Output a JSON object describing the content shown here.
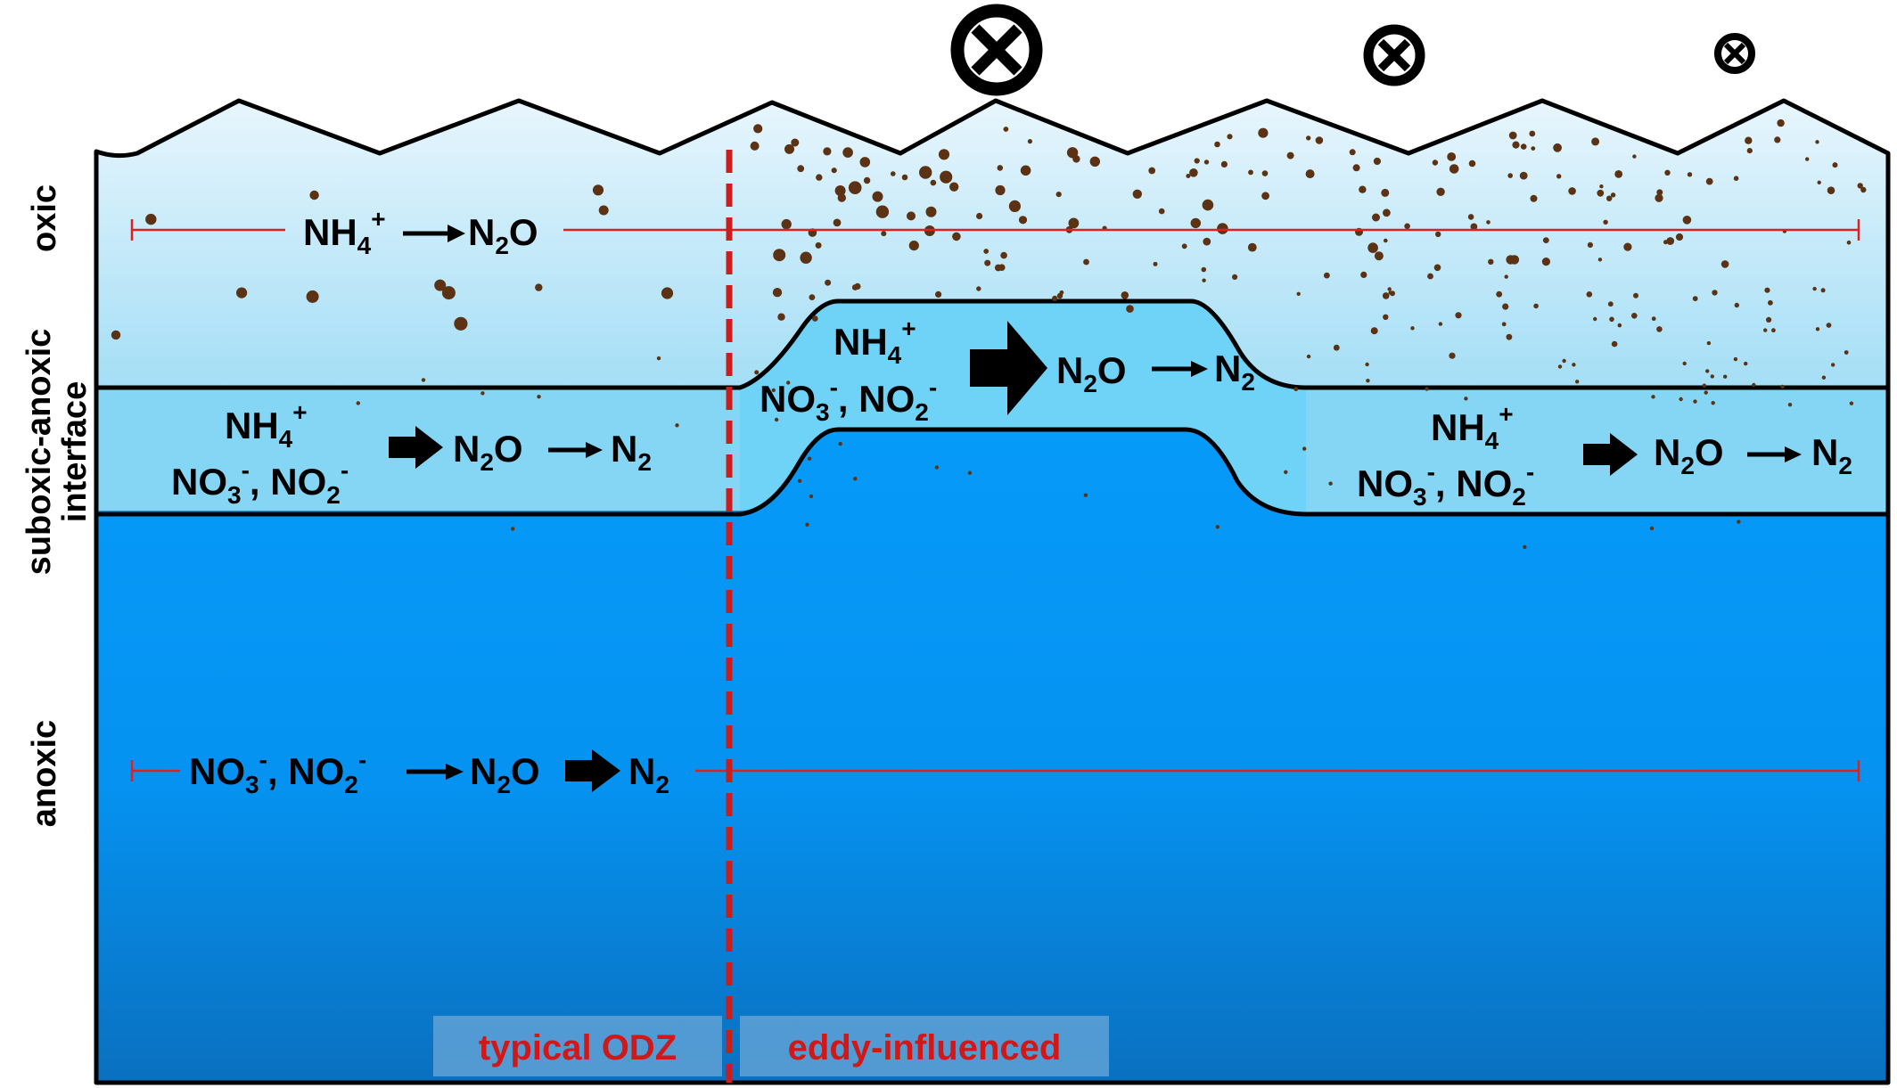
{
  "zone_labels": {
    "oxic": "oxic",
    "interface_line1": "suboxic-anoxic",
    "interface_line2": "interface",
    "anoxic": "anoxic"
  },
  "oxic_pathway": {
    "reactant": "NH",
    "reactant_sub": "4",
    "reactant_sup": "+",
    "product": "N",
    "product_sub": "2",
    "product_tail": "O"
  },
  "left_interface_pathway": {
    "line1": "NH",
    "line1_sub": "4",
    "line1_sup": "+",
    "line2_a": "NO",
    "line2_a_sub": "3",
    "line2_a_sup": "-",
    "line2_sep": ", NO",
    "line2_b_sub": "2",
    "line2_b_sup": "-",
    "intermediate": "N",
    "intermediate_sub": "2",
    "intermediate_tail": "O",
    "product": "N",
    "product_sub": "2"
  },
  "eddy_pathway": {
    "line1": "NH",
    "line1_sub": "4",
    "line1_sup": "+",
    "line2_a": "NO",
    "line2_a_sub": "3",
    "line2_a_sup": "-",
    "line2_sep": ", NO",
    "line2_b_sub": "2",
    "line2_b_sup": "-",
    "intermediate": "N",
    "intermediate_sub": "2",
    "intermediate_tail": "O",
    "product": "N",
    "product_sub": "2"
  },
  "right_interface_pathway": {
    "line1": "NH",
    "line1_sub": "4",
    "line1_sup": "+",
    "line2_a": "NO",
    "line2_a_sub": "3",
    "line2_a_sup": "-",
    "line2_sep": ", NO",
    "line2_b_sub": "2",
    "line2_b_sup": "-",
    "intermediate": "N",
    "intermediate_sub": "2",
    "intermediate_tail": "O",
    "product": "N",
    "product_sub": "2"
  },
  "anoxic_pathway": {
    "a": "NO",
    "a_sub": "3",
    "a_sup": "-",
    "sep": ", NO",
    "b_sub": "2",
    "b_sup": "-",
    "intermediate": "N",
    "intermediate_sub": "2",
    "intermediate_tail": "O",
    "product": "N",
    "product_sub": "2"
  },
  "region_labels": {
    "left": "typical ODZ",
    "right": "eddy-influenced"
  },
  "colors": {
    "oxic_top": "#e8f6fd",
    "oxic_bottom": "#a4def6",
    "interface": "#85d6f5",
    "eddy_interface": "#6fd2f7",
    "anoxic_top": "#069af9",
    "anoxic_bottom": "#0a74c4",
    "particle": "#5b3314",
    "range_line": "#e02020",
    "divider": "#cc1c1c",
    "label_text": "#d01818",
    "label_box": "#5b9fd4"
  },
  "icons": {
    "current": "circle-cross-into-page-icon"
  }
}
